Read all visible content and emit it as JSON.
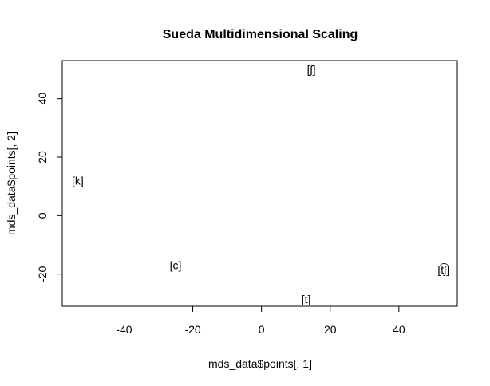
{
  "chart_data": {
    "type": "scatter",
    "title": "Sueda Multidimensional Scaling",
    "xlabel": "mds_data$points[, 1]",
    "ylabel": "mds_data$points[, 2]",
    "xlim": [
      -58,
      57
    ],
    "ylim": [
      -31,
      53
    ],
    "xticks": [
      -40,
      -20,
      0,
      20,
      40
    ],
    "yticks": [
      -20,
      0,
      20,
      40
    ],
    "grid": false,
    "points": [
      {
        "label": "[ʃ]",
        "x": 14.5,
        "y": 50.0
      },
      {
        "label": "[k]",
        "x": -53.5,
        "y": 12.0
      },
      {
        "label": "[c]",
        "x": -25.0,
        "y": -17.0
      },
      {
        "label": "[t]",
        "x": 13.0,
        "y": -28.5
      },
      {
        "label": "[t͡ʃ]",
        "x": 53.0,
        "y": -18.5
      }
    ]
  }
}
